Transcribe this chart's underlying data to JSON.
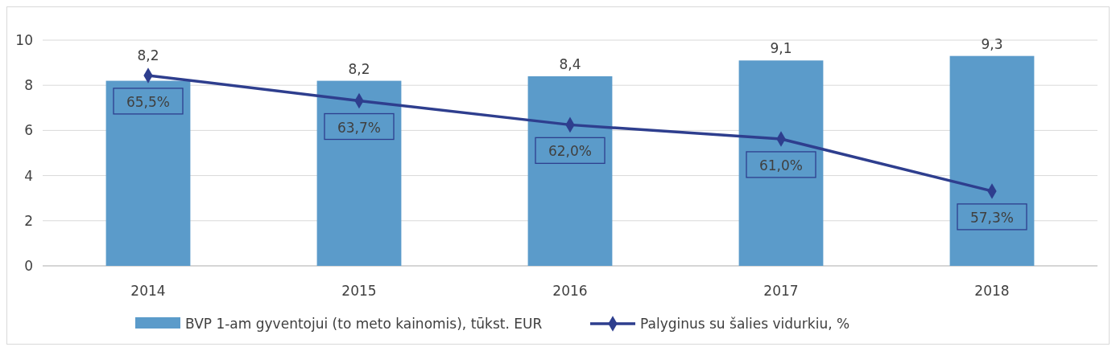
{
  "chart_data": {
    "type": "bar",
    "categories": [
      "2014",
      "2015",
      "2016",
      "2017",
      "2018"
    ],
    "series": [
      {
        "name": "BVP 1-am gyventojui (to meto kainomis), tūkst. EUR",
        "color": "#5b9bca",
        "values": [
          8.2,
          8.2,
          8.4,
          9.1,
          9.3
        ],
        "value_labels": [
          "8,2",
          "8,2",
          "8,4",
          "9,1",
          "9,3"
        ]
      },
      {
        "name": "Palyginus su šalies vidurkiu, %",
        "type": "line",
        "axis": "y2",
        "color": "#2e3e8e",
        "marker": "diamond",
        "values": [
          65.5,
          63.7,
          62.0,
          61.0,
          57.3
        ],
        "value_labels": [
          "65,5%",
          "63,7%",
          "62,0%",
          "61,0%",
          "57,3%"
        ]
      }
    ],
    "ylim": [
      0,
      10
    ],
    "yticks": [
      0,
      2,
      4,
      6,
      8,
      10
    ],
    "y2lim": [
      52,
      68
    ],
    "tick_labels": "xy",
    "grid": "y",
    "legend": "bottom"
  }
}
